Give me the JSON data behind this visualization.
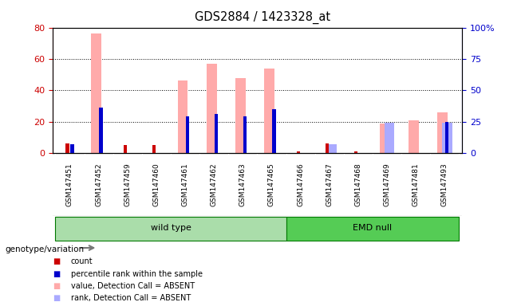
{
  "title": "GDS2884 / 1423328_at",
  "samples": [
    "GSM147451",
    "GSM147452",
    "GSM147459",
    "GSM147460",
    "GSM147461",
    "GSM147462",
    "GSM147463",
    "GSM147465",
    "GSM147466",
    "GSM147467",
    "GSM147468",
    "GSM147469",
    "GSM147481",
    "GSM147493"
  ],
  "count_values": [
    6,
    0,
    5,
    5,
    0,
    0,
    0,
    0,
    1,
    6,
    1,
    0,
    0,
    0
  ],
  "rank_values": [
    7,
    36,
    0,
    0,
    29,
    31,
    29,
    35,
    0,
    0,
    0,
    0,
    0,
    25
  ],
  "absent_value_values": [
    0,
    76,
    0,
    0,
    46,
    57,
    48,
    54,
    0,
    0,
    0,
    19,
    21,
    26
  ],
  "absent_rank_values": [
    0,
    0,
    0,
    0,
    0,
    0,
    0,
    0,
    0,
    7,
    0,
    24,
    0,
    24
  ],
  "wt_group": {
    "label": "wild type",
    "start": 0,
    "end": 7
  },
  "emd_group": {
    "label": "EMD null",
    "start": 8,
    "end": 13
  },
  "ylim_left": [
    0,
    80
  ],
  "ylim_right": [
    0,
    100
  ],
  "yticks_left": [
    0,
    20,
    40,
    60,
    80
  ],
  "yticks_right": [
    0,
    25,
    50,
    75,
    100
  ],
  "ytick_labels_right": [
    "0",
    "25",
    "50",
    "75",
    "100%"
  ],
  "count_color": "#cc0000",
  "rank_color": "#0000cc",
  "absent_value_color": "#ffaaaa",
  "absent_rank_color": "#aaaaff",
  "group_color_wt": "#aaddaa",
  "group_color_emd": "#55cc55",
  "xtick_bg_color": "#cccccc",
  "genotype_label": "genotype/variation",
  "legend_items": [
    {
      "label": "count",
      "color": "#cc0000"
    },
    {
      "label": "percentile rank within the sample",
      "color": "#0000cc"
    },
    {
      "label": "value, Detection Call = ABSENT",
      "color": "#ffaaaa"
    },
    {
      "label": "rank, Detection Call = ABSENT",
      "color": "#aaaaff"
    }
  ]
}
